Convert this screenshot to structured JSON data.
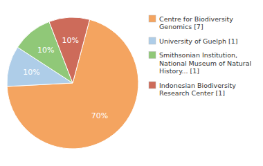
{
  "chart_data": {
    "type": "pie",
    "categories": [
      "Centre for Biodiversity\nGenomics [7]",
      "University of Guelph [1]",
      "Smithsonian Institution,\nNational Museum of Natural\nHistory... [1]",
      "Indonesian Biodiversity\nResearch Center [1]"
    ],
    "values": [
      70,
      10,
      10,
      10
    ],
    "value_labels": [
      "70%",
      "10%",
      "10%",
      "10%"
    ],
    "colors": [
      "#F4A460",
      "#AECDE8",
      "#90C878",
      "#CD6B5A"
    ],
    "data_labels": true,
    "legend": "right"
  }
}
